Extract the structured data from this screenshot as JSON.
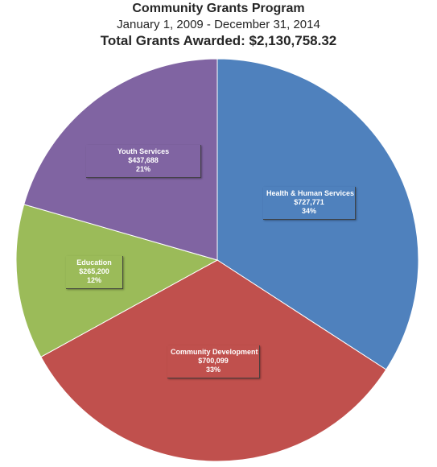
{
  "header": {
    "title": "Community Grants Program",
    "subtitle": "January 1, 2009 - December 31, 2014",
    "total": "Total Grants Awarded:  $2,130,758.32"
  },
  "chart_data": {
    "type": "pie",
    "title": "Community Grants Program",
    "slices": [
      {
        "name": "Health & Human Services",
        "value": 727771,
        "value_label": "$727,771",
        "percent_label": "34%",
        "color": "#4F81BD"
      },
      {
        "name": "Community Development",
        "value": 700099,
        "value_label": "$700,099",
        "percent_label": "33%",
        "color": "#C0504D"
      },
      {
        "name": "Education",
        "value": 265200,
        "value_label": "$265,200",
        "percent_label": "12%",
        "color": "#9BBB59"
      },
      {
        "name": "Youth Services",
        "value": 437688,
        "value_label": "$437,688",
        "percent_label": "21%",
        "color": "#8064A2"
      }
    ],
    "start_angle": "12 o'clock",
    "direction": "clockwise",
    "legend": "none"
  }
}
